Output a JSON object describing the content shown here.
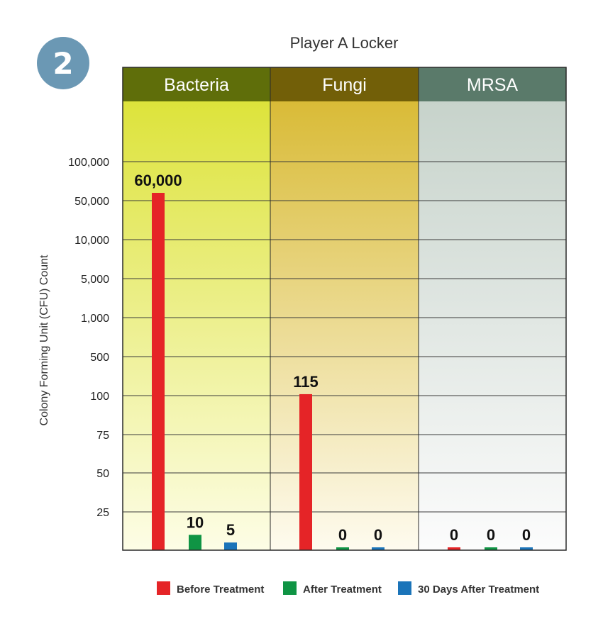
{
  "badge": {
    "number": "2"
  },
  "chart_data": {
    "type": "bar",
    "title": "Player A Locker",
    "ylabel": "Colony Forming Unit (CFU) Count",
    "xlabel": "",
    "categories": [
      "Bacteria",
      "Fungi",
      "MRSA"
    ],
    "category_colors": {
      "Bacteria": {
        "header": "#5f6e0a",
        "top": "#dde33b",
        "bottom": "#fdfde6"
      },
      "Fungi": {
        "header": "#725f08",
        "top": "#d9bb37",
        "bottom": "#fefbef"
      },
      "MRSA": {
        "header": "#5a7a6a",
        "top": "#c7d3cb",
        "bottom": "#fcfcfc"
      }
    },
    "y_ticks": [
      "100,000",
      "50,000",
      "10,000",
      "5,000",
      "1,000",
      "500",
      "100",
      "75",
      "50",
      "25"
    ],
    "y_tick_values": [
      100000,
      50000,
      10000,
      5000,
      1000,
      500,
      100,
      75,
      50,
      25
    ],
    "series": [
      {
        "name": "Before Treatment",
        "color": "#e52427",
        "values": [
          60000,
          115,
          0
        ],
        "labels": [
          "60,000",
          "115",
          "0"
        ]
      },
      {
        "name": "After Treatment",
        "color": "#0f9444",
        "values": [
          10,
          0,
          0
        ],
        "labels": [
          "10",
          "0",
          "0"
        ]
      },
      {
        "name": "30 Days After Treatment",
        "color": "#1b74b9",
        "values": [
          5,
          0,
          0
        ],
        "labels": [
          "5",
          "0",
          "0"
        ]
      }
    ],
    "legend_position": "bottom",
    "grid": true
  }
}
